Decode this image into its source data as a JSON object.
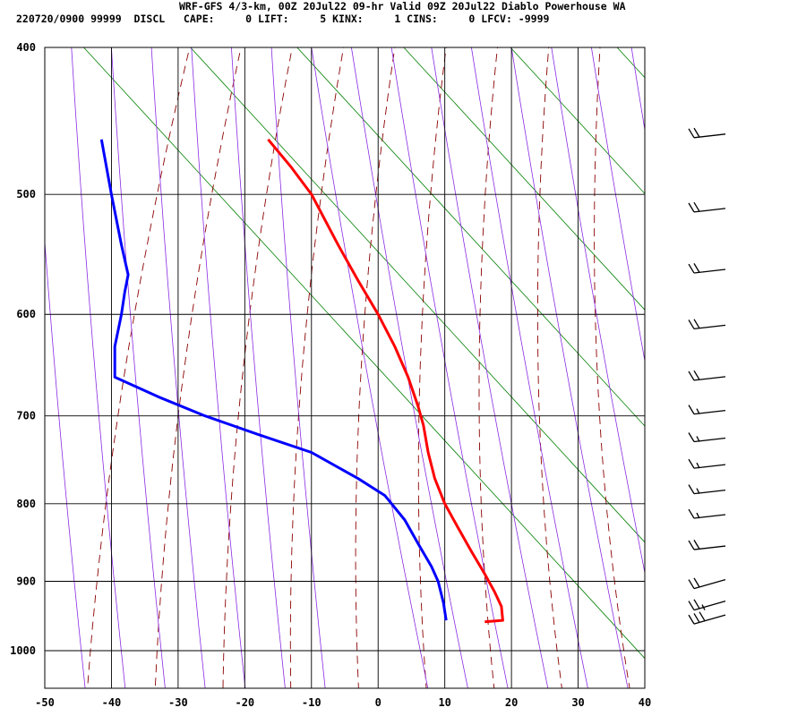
{
  "header": {
    "line1": "WRF-GFS 4/3-km, 00Z 20Jul22 09-hr Valid 09Z 20Jul22 Diablo Powerhouse WA",
    "line2": "220720/0900 99999  DISCL   CAPE:     0 LIFT:     5 KINX:     1 CINS:     0 LFCV: -9999"
  },
  "colors": {
    "temperature": "#ff0000",
    "dewpoint": "#0000ff",
    "dry_adiabat": "#8b0000",
    "moist_adiabat": "#8a2be2",
    "mixing_ratio": "#007f00",
    "grid": "#000000"
  },
  "chart_data": {
    "type": "line",
    "title": "",
    "xlabel": "",
    "ylabel": "",
    "x_axis_range": [
      -50,
      40
    ],
    "x_ticks": [
      -50,
      -40,
      -30,
      -20,
      -10,
      0,
      10,
      20,
      30,
      40
    ],
    "pressure_ticks": [
      400,
      500,
      600,
      700,
      800,
      900,
      1000
    ],
    "y_scale": "log pressure (hPa, increasing downward)",
    "grid": true,
    "series": [
      {
        "key": "temperature",
        "points": [
          [
            -16.5,
            460
          ],
          [
            -13,
            480
          ],
          [
            -10,
            500
          ],
          [
            -6,
            540
          ],
          [
            -3,
            570
          ],
          [
            0,
            600
          ],
          [
            2.5,
            630
          ],
          [
            4.5,
            660
          ],
          [
            6,
            690
          ],
          [
            6.8,
            710
          ],
          [
            7.5,
            740
          ],
          [
            8.5,
            770
          ],
          [
            10,
            800
          ],
          [
            12,
            830
          ],
          [
            14,
            860
          ],
          [
            16,
            890
          ],
          [
            17.5,
            915
          ],
          [
            18.5,
            935
          ],
          [
            18.7,
            955
          ],
          [
            16,
            957
          ]
        ]
      },
      {
        "key": "dewpoint",
        "points": [
          [
            -41.5,
            460
          ],
          [
            -40,
            500
          ],
          [
            -38.5,
            540
          ],
          [
            -37.5,
            565
          ],
          [
            -38,
            580
          ],
          [
            -38.5,
            600
          ],
          [
            -39.5,
            630
          ],
          [
            -39.5,
            660
          ],
          [
            -33,
            680
          ],
          [
            -26,
            700
          ],
          [
            -18,
            720
          ],
          [
            -10,
            740
          ],
          [
            -3,
            770
          ],
          [
            1,
            790
          ],
          [
            4,
            820
          ],
          [
            6,
            850
          ],
          [
            8,
            880
          ],
          [
            9,
            900
          ],
          [
            9.8,
            930
          ],
          [
            10.2,
            955
          ]
        ]
      }
    ],
    "wind_barbs": {
      "pressures": [
        460,
        515,
        565,
        615,
        665,
        700,
        730,
        760,
        790,
        820,
        860,
        905,
        935,
        955
      ],
      "speeds_kt": [
        20,
        20,
        20,
        20,
        20,
        15,
        15,
        15,
        15,
        15,
        20,
        20,
        25,
        30
      ]
    }
  }
}
